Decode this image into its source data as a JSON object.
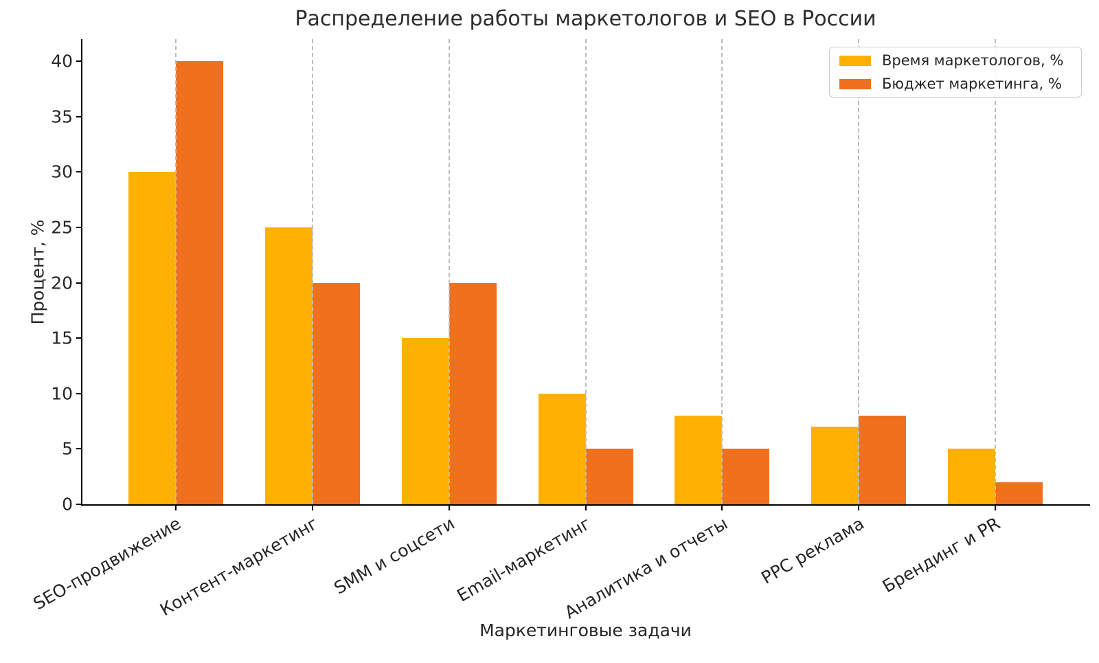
{
  "chart_data": {
    "type": "bar",
    "title": "Распределение работы маркетологов и SEO в России",
    "xlabel": "Маркетинговые задачи",
    "ylabel": "Процент, %",
    "categories": [
      "SEO-продвижение",
      "Контент-маркетинг",
      "SMM и соцсети",
      "Email-маркетинг",
      "Аналитика и отчеты",
      "PPC реклама",
      "Брендинг и PR"
    ],
    "series": [
      {
        "name": "Время маркетологов, %",
        "color": "#FFB000",
        "values": [
          30,
          25,
          15,
          10,
          8,
          7,
          5
        ]
      },
      {
        "name": "Бюджет маркетинга, %",
        "color": "#F0701E",
        "values": [
          40,
          20,
          20,
          5,
          5,
          8,
          2
        ]
      }
    ],
    "yticks": [
      0,
      5,
      10,
      15,
      20,
      25,
      30,
      35,
      40
    ],
    "ylim": [
      0,
      42
    ],
    "grid": "vertical-dashed-at-categories",
    "legend_position": "upper-right",
    "xtick_rotation_deg": 30
  }
}
